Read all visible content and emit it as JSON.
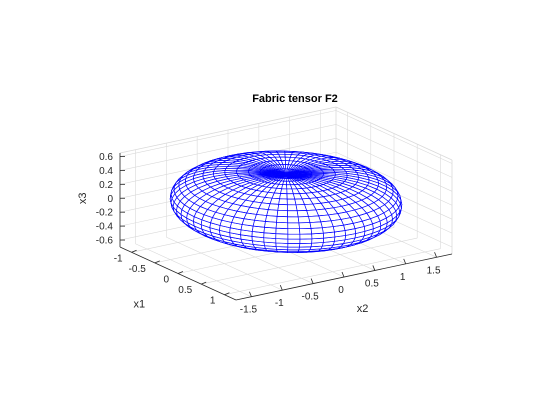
{
  "chart_data": {
    "type": "surface",
    "title": "Fabric tensor F2",
    "xlabel": "x1",
    "ylabel": "x2",
    "zlabel": "x3",
    "x1_ticks": [
      "-1",
      "-0.5",
      "0",
      "0.5",
      "1"
    ],
    "x2_ticks": [
      "-1.5",
      "-1",
      "-0.5",
      "0",
      "0.5",
      "1",
      "1.5"
    ],
    "x3_ticks": [
      "-0.6",
      "-0.4",
      "-0.2",
      "0",
      "0.2",
      "0.4",
      "0.6"
    ],
    "x1_values": [
      -1,
      -0.5,
      0,
      0.5,
      1
    ],
    "x2_values": [
      -1.5,
      -1,
      -0.5,
      0,
      0.5,
      1,
      1.5
    ],
    "x3_values": [
      -0.6,
      -0.4,
      -0.2,
      0,
      0.2,
      0.4,
      0.6
    ],
    "x1_lim": [
      -1.25,
      1.25
    ],
    "x2_lim": [
      -1.75,
      1.75
    ],
    "x3_lim": [
      -0.7,
      0.65
    ],
    "surface": {
      "shape": "oblate torus-like glyph",
      "horizontal_radius": 1.5,
      "vertical_half_height": 0.6,
      "mesh_color": "#0000ff",
      "face_color": "#ffffff"
    },
    "grid": true,
    "grid_color": "#d9d9d9",
    "box_color": "#262626"
  }
}
